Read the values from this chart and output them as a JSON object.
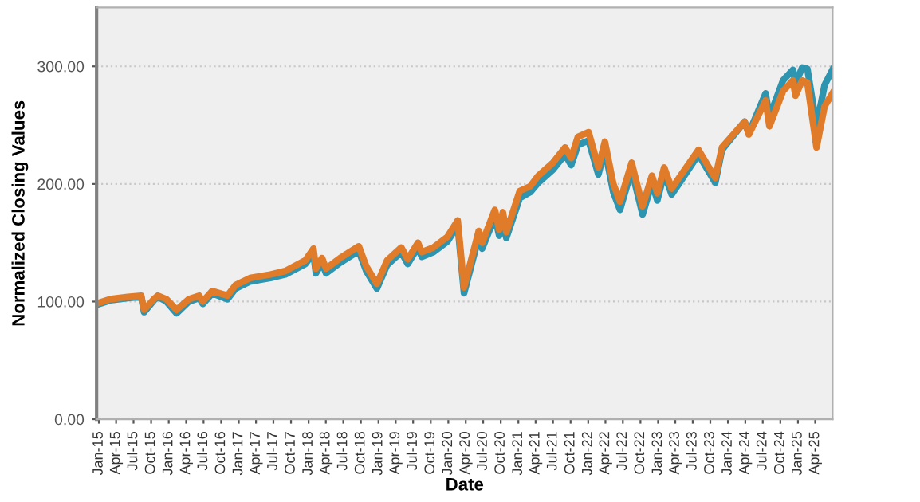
{
  "chart_data": {
    "type": "line",
    "xlabel": "Date",
    "ylabel": "Normalized Closing Values",
    "x": [
      "2015-01-02",
      "2015-03-01",
      "2015-06-01",
      "2015-08-10",
      "2015-08-25",
      "2015-10-15",
      "2015-11-05",
      "2015-12-20",
      "2016-02-11",
      "2016-04-15",
      "2016-06-08",
      "2016-06-27",
      "2016-08-15",
      "2016-11-03",
      "2016-12-15",
      "2017-03-01",
      "2017-06-15",
      "2017-09-01",
      "2017-12-15",
      "2018-01-26",
      "2018-02-08",
      "2018-03-12",
      "2018-04-02",
      "2018-06-15",
      "2018-09-20",
      "2018-10-29",
      "2018-12-24",
      "2019-02-15",
      "2019-04-30",
      "2019-06-03",
      "2019-07-26",
      "2019-08-15",
      "2019-10-15",
      "2019-12-27",
      "2020-02-19",
      "2020-03-23",
      "2020-06-08",
      "2020-06-26",
      "2020-08-31",
      "2020-09-23",
      "2020-10-12",
      "2020-10-30",
      "2021-01-08",
      "2021-03-04",
      "2021-04-15",
      "2021-06-30",
      "2021-09-02",
      "2021-10-04",
      "2021-11-08",
      "2022-01-03",
      "2022-02-23",
      "2022-03-29",
      "2022-05-12",
      "2022-06-16",
      "2022-08-16",
      "2022-10-12",
      "2022-11-30",
      "2022-12-28",
      "2023-02-02",
      "2023-03-13",
      "2023-04-28",
      "2023-07-31",
      "2023-10-27",
      "2023-12-01",
      "2024-03-28",
      "2024-04-19",
      "2024-07-16",
      "2024-08-05",
      "2024-10-15",
      "2024-12-06",
      "2024-12-19",
      "2025-01-23",
      "2025-02-19",
      "2025-04-08",
      "2025-05-20",
      "2025-06-30"
    ],
    "series": [
      {
        "color": "#2e95b0",
        "values": [
          98,
          101,
          103,
          104,
          91,
          101,
          104,
          100,
          90,
          100,
          103,
          98,
          107,
          102,
          111,
          117,
          120,
          123,
          132,
          141,
          124,
          133,
          124,
          133,
          143,
          126,
          111,
          131,
          142,
          132,
          146,
          138,
          142,
          151,
          165,
          107,
          155,
          145,
          172,
          156,
          170,
          154,
          188,
          193,
          201,
          212,
          225,
          216,
          233,
          237,
          208,
          229,
          193,
          178,
          212,
          174,
          201,
          186,
          209,
          191,
          202,
          225,
          201,
          229,
          253,
          243,
          277,
          257,
          288,
          297,
          285,
          299,
          298,
          249,
          284,
          297
        ]
      },
      {
        "color": "#e07b2a",
        "values": [
          99,
          102,
          104,
          105,
          93,
          102,
          105,
          102,
          93,
          102,
          105,
          100,
          109,
          105,
          114,
          120,
          123,
          126,
          135,
          145,
          128,
          137,
          128,
          137,
          147,
          130,
          115,
          135,
          146,
          136,
          150,
          142,
          146,
          155,
          169,
          112,
          160,
          150,
          178,
          161,
          176,
          159,
          194,
          198,
          207,
          218,
          231,
          222,
          240,
          244,
          214,
          236,
          200,
          185,
          218,
          181,
          207,
          192,
          214,
          196,
          207,
          229,
          205,
          231,
          253,
          242,
          271,
          249,
          279,
          288,
          275,
          288,
          286,
          231,
          266,
          277
        ]
      }
    ],
    "xlim": [
      "2014-12-20",
      "2025-07-01"
    ],
    "ylim": [
      0,
      350
    ],
    "yticks": [
      {
        "value": 0,
        "label": "0.00"
      },
      {
        "value": 100,
        "label": "100.00"
      },
      {
        "value": 200,
        "label": "200.00"
      },
      {
        "value": 300,
        "label": "300.00"
      }
    ],
    "xticks": [
      {
        "value": "2015-01-01",
        "label": "Jan-15"
      },
      {
        "value": "2015-04-01",
        "label": "Apr-15"
      },
      {
        "value": "2015-07-01",
        "label": "Jul-15"
      },
      {
        "value": "2015-10-01",
        "label": "Oct-15"
      },
      {
        "value": "2016-01-01",
        "label": "Jan-16"
      },
      {
        "value": "2016-04-01",
        "label": "Apr-16"
      },
      {
        "value": "2016-07-01",
        "label": "Jul-16"
      },
      {
        "value": "2016-10-01",
        "label": "Oct-16"
      },
      {
        "value": "2017-01-01",
        "label": "Jan-17"
      },
      {
        "value": "2017-04-01",
        "label": "Apr-17"
      },
      {
        "value": "2017-07-01",
        "label": "Jul-17"
      },
      {
        "value": "2017-10-01",
        "label": "Oct-17"
      },
      {
        "value": "2018-01-01",
        "label": "Jan-18"
      },
      {
        "value": "2018-04-01",
        "label": "Apr-18"
      },
      {
        "value": "2018-07-01",
        "label": "Jul-18"
      },
      {
        "value": "2018-10-01",
        "label": "Oct-18"
      },
      {
        "value": "2019-01-01",
        "label": "Jan-19"
      },
      {
        "value": "2019-04-01",
        "label": "Apr-19"
      },
      {
        "value": "2019-07-01",
        "label": "Jul-19"
      },
      {
        "value": "2019-10-01",
        "label": "Oct-19"
      },
      {
        "value": "2020-01-01",
        "label": "Jan-20"
      },
      {
        "value": "2020-04-01",
        "label": "Apr-20"
      },
      {
        "value": "2020-07-01",
        "label": "Jul-20"
      },
      {
        "value": "2020-10-01",
        "label": "Oct-20"
      },
      {
        "value": "2021-01-01",
        "label": "Jan-21"
      },
      {
        "value": "2021-04-01",
        "label": "Apr-21"
      },
      {
        "value": "2021-07-01",
        "label": "Jul-21"
      },
      {
        "value": "2021-10-01",
        "label": "Oct-21"
      },
      {
        "value": "2022-01-01",
        "label": "Jan-22"
      },
      {
        "value": "2022-04-01",
        "label": "Apr-22"
      },
      {
        "value": "2022-07-01",
        "label": "Jul-22"
      },
      {
        "value": "2022-10-01",
        "label": "Oct-22"
      },
      {
        "value": "2023-01-01",
        "label": "Jan-23"
      },
      {
        "value": "2023-04-01",
        "label": "Apr-23"
      },
      {
        "value": "2023-07-01",
        "label": "Jul-23"
      },
      {
        "value": "2023-10-01",
        "label": "Oct-23"
      },
      {
        "value": "2024-01-01",
        "label": "Jan-24"
      },
      {
        "value": "2024-04-01",
        "label": "Apr-24"
      },
      {
        "value": "2024-07-01",
        "label": "Jul-24"
      },
      {
        "value": "2024-10-01",
        "label": "Oct-24"
      },
      {
        "value": "2025-01-01",
        "label": "Jan-25"
      },
      {
        "value": "2025-04-01",
        "label": "Apr-25"
      }
    ],
    "grid": "y",
    "line_style": "solid"
  }
}
